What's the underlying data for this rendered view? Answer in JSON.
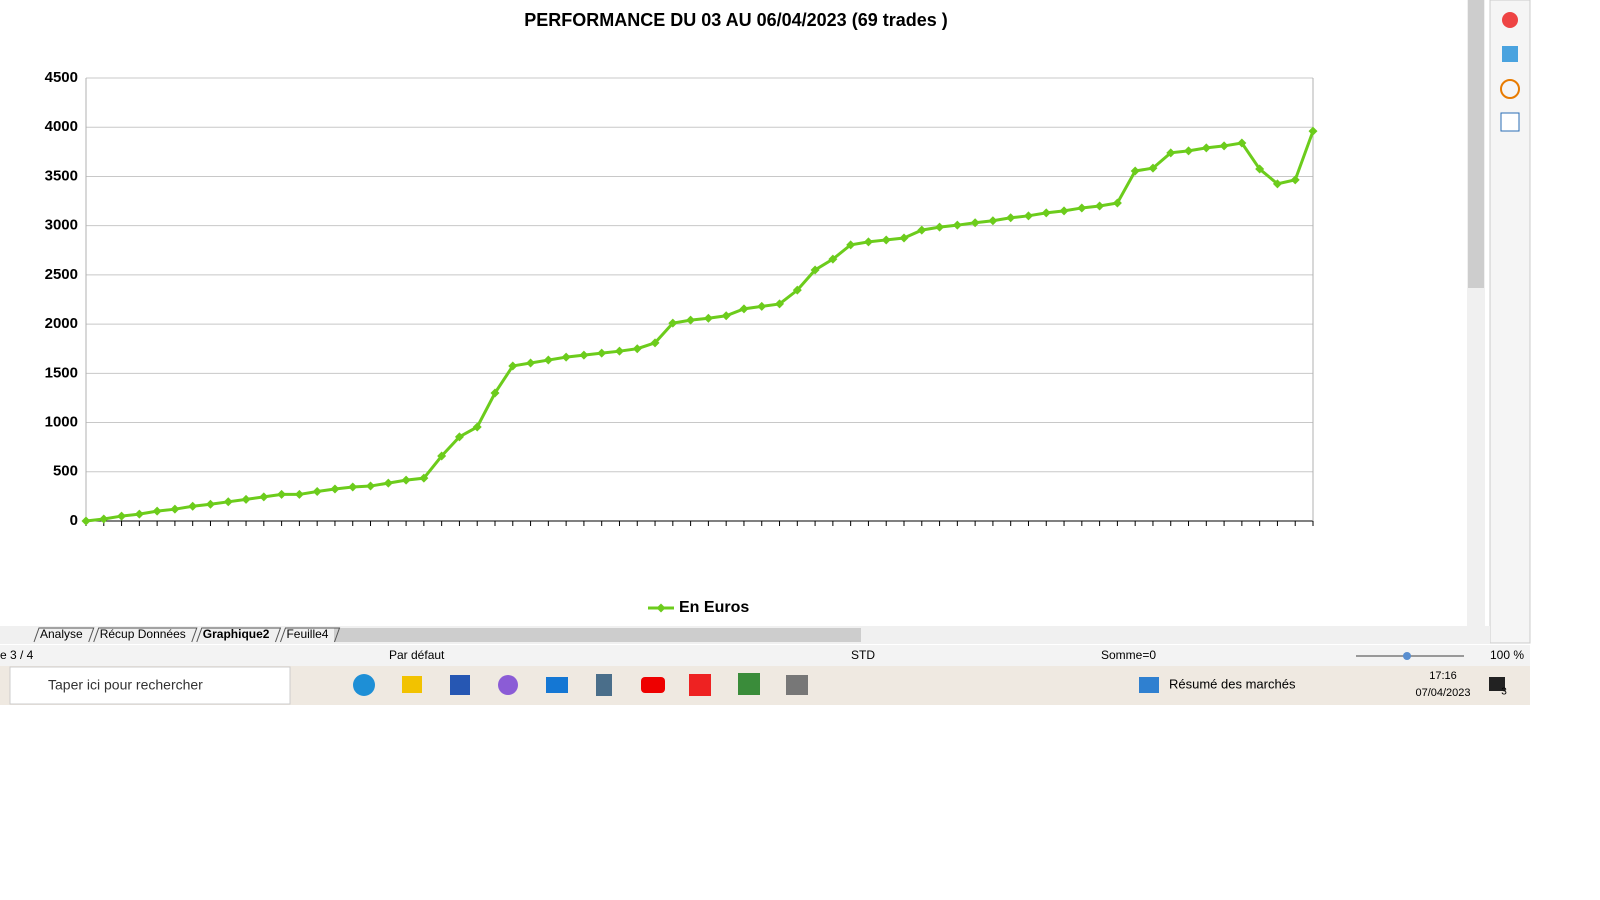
{
  "chart_data": {
    "type": "line",
    "title": "PERFORMANCE DU 03 AU 06/04/2023 (69 trades )",
    "categories": [
      null,
      null,
      null,
      null,
      null,
      null,
      null,
      null,
      null,
      null,
      null,
      null,
      null,
      null,
      null,
      null,
      null,
      null,
      null,
      null,
      null,
      null,
      null,
      null,
      null,
      null,
      null,
      null,
      null,
      null,
      null,
      null,
      null,
      null,
      null,
      null,
      null,
      null,
      null,
      null,
      null,
      null,
      null,
      null,
      null,
      null,
      null,
      null,
      null,
      null,
      null,
      null,
      null,
      null,
      null,
      null,
      null,
      null,
      null,
      null,
      null,
      null,
      null,
      null,
      null,
      null,
      null,
      null,
      null,
      null
    ],
    "series": [
      {
        "name": "En Euros",
        "color": "#6ccc1c",
        "values": [
          0,
          20,
          50,
          70,
          100,
          120,
          150,
          170,
          195,
          220,
          245,
          270,
          270,
          300,
          325,
          345,
          355,
          385,
          415,
          435,
          660,
          855,
          955,
          1300,
          1575,
          1605,
          1635,
          1665,
          1685,
          1705,
          1725,
          1750,
          1810,
          2010,
          2040,
          2060,
          2085,
          2155,
          2180,
          2205,
          2345,
          2550,
          2660,
          2805,
          2835,
          2855,
          2875,
          2955,
          2985,
          3005,
          3030,
          3050,
          3080,
          3100,
          3130,
          3150,
          3180,
          3200,
          3230,
          3555,
          3585,
          3740,
          3760,
          3790,
          3810,
          3840,
          3575,
          3425,
          3465,
          3960
        ]
      }
    ],
    "ylim": [
      0,
      4500
    ],
    "yticks": [
      0,
      500,
      1000,
      1500,
      2000,
      2500,
      3000,
      3500,
      4000,
      4500
    ],
    "grid": true,
    "legend": "bottom"
  },
  "sheet_tabs": [
    "Analyse",
    "Récup Données",
    "Graphique2",
    "Feuille4"
  ],
  "status_bar": {
    "page": "e 3 / 4",
    "page_style": "Par défaut",
    "selection_mode": "STD",
    "sum": "Somme=0",
    "zoom": "100 %"
  },
  "taskbar": {
    "search": "Taper ici pour rechercher",
    "widget": "Résumé des marchés",
    "time": "17:16",
    "date": "07/04/2023",
    "notifications": 3
  }
}
